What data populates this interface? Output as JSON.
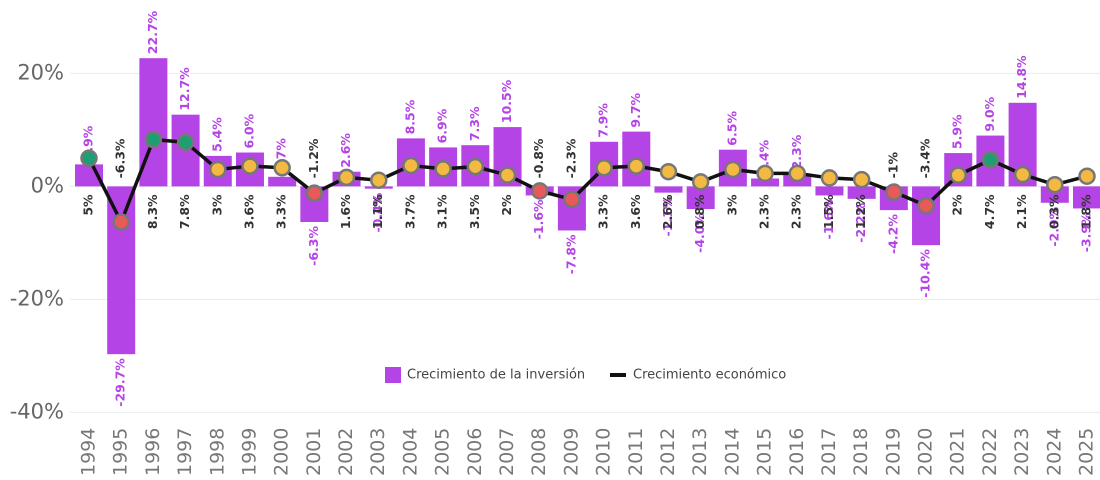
{
  "chart_data": {
    "type": "bar_line",
    "categories": [
      "1994",
      "1995",
      "1996",
      "1997",
      "1998",
      "1999",
      "2000",
      "2001",
      "2002",
      "2003",
      "2004",
      "2005",
      "2006",
      "2007",
      "2008",
      "2009",
      "2010",
      "2011",
      "2012",
      "2013",
      "2014",
      "2015",
      "2016",
      "2017",
      "2018",
      "2019",
      "2020",
      "2021",
      "2022",
      "2023",
      "2024",
      "2025"
    ],
    "series": [
      {
        "name": "Crecimiento de la inversión",
        "type": "bar",
        "color": "#b544e6",
        "values": [
          3.9,
          -29.7,
          22.7,
          12.7,
          5.4,
          6.0,
          1.7,
          -6.3,
          2.6,
          -0.4,
          8.5,
          6.9,
          7.3,
          10.5,
          -1.6,
          -7.8,
          7.9,
          9.7,
          -1.1,
          -4.0,
          6.5,
          1.4,
          2.3,
          -1.6,
          -2.2,
          -4.2,
          -10.4,
          5.9,
          9.0,
          14.8,
          -2.9,
          -3.9
        ],
        "value_labels": [
          "3.9%",
          "-29.7%",
          "22.7%",
          "12.7%",
          "5.4%",
          "6.0%",
          "1.7%",
          "-6.3%",
          "2.6%",
          "-0.4%",
          "8.5%",
          "6.9%",
          "7.3%",
          "10.5%",
          "-1.6%",
          "-7.8%",
          "7.9%",
          "9.7%",
          "-1.1%",
          "-4.0%",
          "6.5%",
          "1.4%",
          "2.3%",
          "-1.6%",
          "-2.2%",
          "-4.2%",
          "-10.4%",
          "5.9%",
          "9.0%",
          "14.8%",
          "-2.9%",
          "-3.9%"
        ]
      },
      {
        "name": "Crecimiento económico",
        "type": "line",
        "color": "#111111",
        "values": [
          5,
          -6.3,
          8.3,
          7.8,
          3,
          3.6,
          3.3,
          -1.2,
          1.6,
          1.1,
          3.7,
          3.1,
          3.5,
          2,
          -0.8,
          -2.3,
          3.3,
          3.6,
          2.6,
          0.8,
          3,
          2.3,
          2.3,
          1.5,
          1.2,
          -1,
          -3.4,
          2,
          4.7,
          2.1,
          0.3,
          1.8
        ],
        "value_labels": [
          "5%",
          "-6.3%",
          "8.3%",
          "7.8%",
          "3%",
          "3.6%",
          "3.3%",
          "-1.2%",
          "1.6%",
          "1.1%",
          "3.7%",
          "3.1%",
          "3.5%",
          "2%",
          "-0.8%",
          "-2.3%",
          "3.3%",
          "3.6%",
          "2.6%",
          "0.8%",
          "3%",
          "2.3%",
          "2.3%",
          "1.5%",
          "1.2%",
          "-1%",
          "-3.4%",
          "2%",
          "4.7%",
          "2.1%",
          "0.3%",
          "1.8%"
        ],
        "marker_colors": [
          "#1e9e73",
          "#e85a5a",
          "#1e9e73",
          "#1e9e73",
          "#f4b942",
          "#f4b942",
          "#f4b942",
          "#e85a5a",
          "#f4b942",
          "#f4b942",
          "#f4b942",
          "#f4b942",
          "#f4b942",
          "#f4b942",
          "#e85a5a",
          "#e85a5a",
          "#f4b942",
          "#f4b942",
          "#f4b942",
          "#f4b942",
          "#f4b942",
          "#f4b942",
          "#f4b942",
          "#f4b942",
          "#f4b942",
          "#e85a5a",
          "#e85a5a",
          "#f4b942",
          "#1e9e73",
          "#f4b942",
          "#f4b942",
          "#f4b942"
        ]
      }
    ],
    "ylim": [
      -41,
      33
    ],
    "yticks": [
      {
        "value": -40,
        "label": "-40%"
      },
      {
        "value": -20,
        "label": "-20%"
      },
      {
        "value": 0,
        "label": "0%"
      },
      {
        "value": 20,
        "label": "20%"
      }
    ],
    "grid": true
  }
}
